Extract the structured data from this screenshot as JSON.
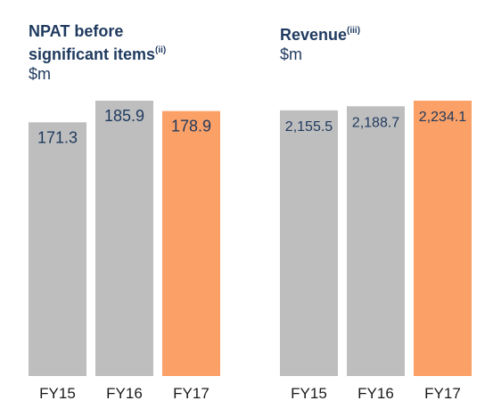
{
  "colors": {
    "title": "#1f3a5f",
    "value_label": "#1f3a5f",
    "bar_gray": "#bebebe",
    "bar_highlight": "#fba066",
    "axis_label": "#1a1a1a"
  },
  "chart_data": [
    {
      "type": "bar",
      "title": "NPAT before significant items",
      "title_footnote": "(ii)",
      "subtitle": "$m",
      "categories": [
        "FY15",
        "FY16",
        "FY17"
      ],
      "values": [
        171.3,
        185.9,
        178.9
      ],
      "value_labels": [
        "171.3",
        "185.9",
        "178.9"
      ],
      "highlight_index": 2,
      "ylim": [
        0,
        190
      ],
      "grid": false,
      "legend": "none"
    },
    {
      "type": "bar",
      "title": "Revenue",
      "title_footnote": "(iii)",
      "subtitle": "$m",
      "categories": [
        "FY15",
        "FY16",
        "FY17"
      ],
      "values": [
        2155.5,
        2188.7,
        2234.1
      ],
      "value_labels": [
        "2,155.5",
        "2,188.7",
        "2,234.1"
      ],
      "highlight_index": 2,
      "ylim": [
        0,
        2280
      ],
      "grid": false,
      "legend": "none"
    }
  ]
}
